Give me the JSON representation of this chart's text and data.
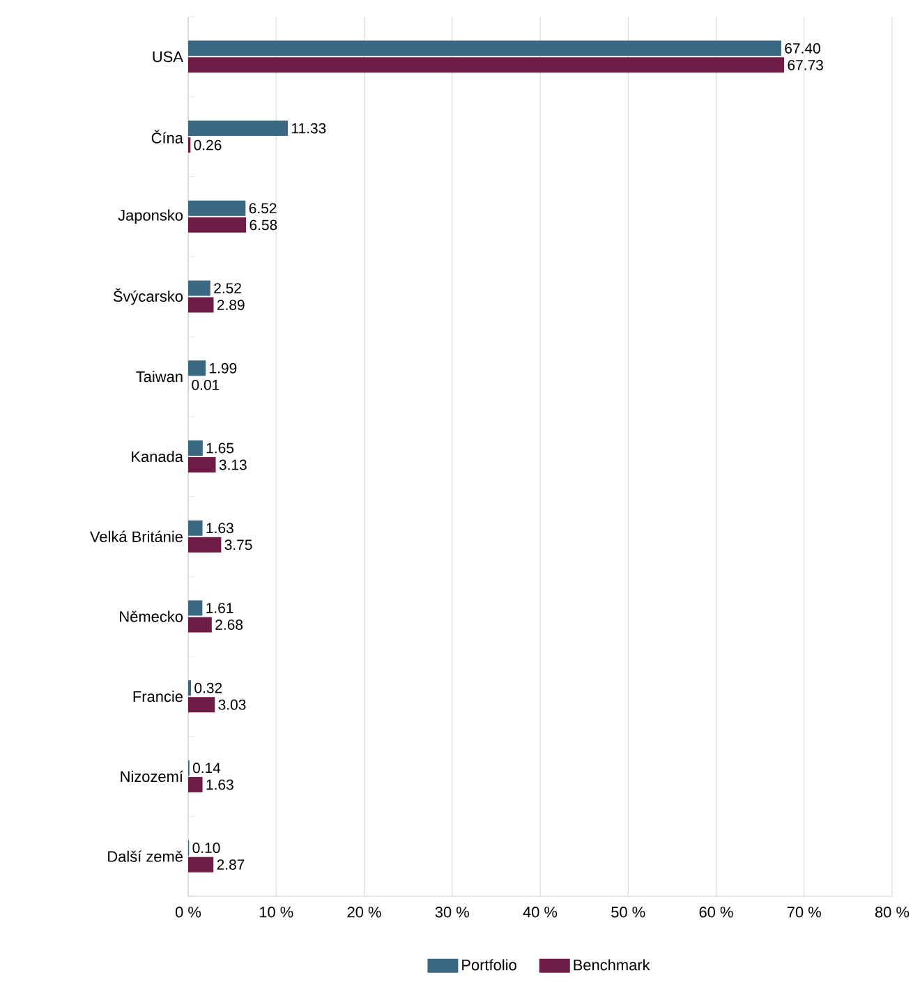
{
  "chart_data": {
    "type": "bar",
    "orientation": "horizontal",
    "categories": [
      "USA",
      "Čína",
      "Japonsko",
      "Švýcarsko",
      "Taiwan",
      "Kanada",
      "Velká Británie",
      "Německo",
      "Francie",
      "Nizozemí",
      "Další země"
    ],
    "series": [
      {
        "name": "Portfolio",
        "color": "#3a6781",
        "values": [
          67.4,
          11.33,
          6.52,
          2.52,
          1.99,
          1.65,
          1.63,
          1.61,
          0.32,
          0.14,
          0.1
        ],
        "value_labels": [
          "67.40",
          "11.33",
          "6.52",
          "2.52",
          "1.99",
          "1.65",
          "1.63",
          "1.61",
          "0.32",
          "0.14",
          "0.10"
        ]
      },
      {
        "name": "Benchmark",
        "color": "#6e1b47",
        "values": [
          67.73,
          0.26,
          6.58,
          2.89,
          0.01,
          3.13,
          3.75,
          2.68,
          3.03,
          1.63,
          2.87
        ],
        "value_labels": [
          "67.73",
          "0.26",
          "6.58",
          "2.89",
          "0.01",
          "3.13",
          "3.75",
          "2.68",
          "3.03",
          "1.63",
          "2.87"
        ]
      }
    ],
    "xlim": [
      0,
      80
    ],
    "xticks": [
      {
        "value": 0,
        "label": "0 %"
      },
      {
        "value": 10,
        "label": "10 %"
      },
      {
        "value": 20,
        "label": "20 %"
      },
      {
        "value": 30,
        "label": "30 %"
      },
      {
        "value": 40,
        "label": "40 %"
      },
      {
        "value": 50,
        "label": "50 %"
      },
      {
        "value": 60,
        "label": "60 %"
      },
      {
        "value": 70,
        "label": "70 %"
      },
      {
        "value": 80,
        "label": "80 %"
      }
    ],
    "grid": "x",
    "legend": "bottom"
  }
}
